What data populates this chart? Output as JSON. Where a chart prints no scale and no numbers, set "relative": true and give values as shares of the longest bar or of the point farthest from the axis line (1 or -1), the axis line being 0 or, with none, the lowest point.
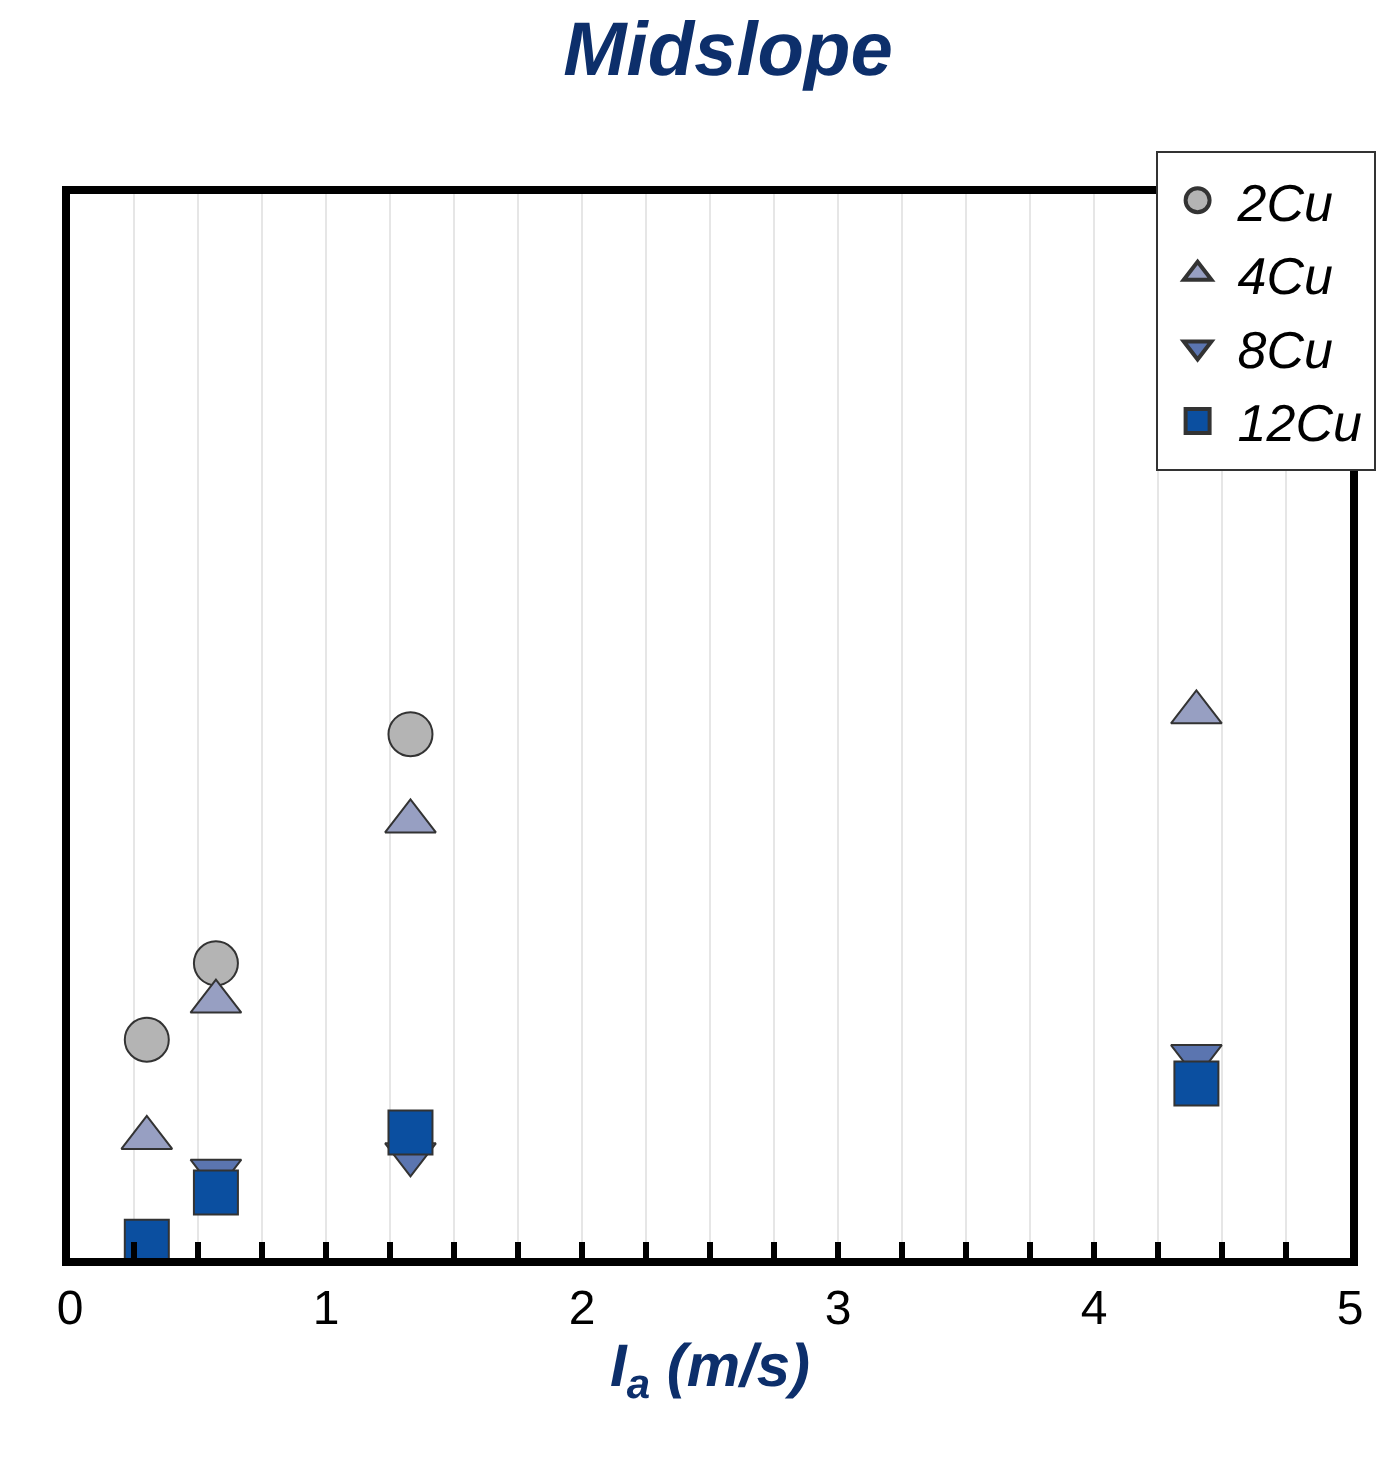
{
  "chart_data": {
    "type": "scatter",
    "title": "Midslope",
    "xlabel": "I$_{a}$ (m/s)",
    "relative": true,
    "tick_labels": "x",
    "xlim": [
      0,
      5
    ],
    "xticks": [
      0,
      {
        "value": 0.25,
        "label": null
      },
      {
        "value": 0.5,
        "label": null
      },
      {
        "value": 0.75,
        "label": null
      },
      1,
      {
        "value": 1.25,
        "label": null
      },
      {
        "value": 1.5,
        "label": null
      },
      {
        "value": 1.75,
        "label": null
      },
      2,
      {
        "value": 2.25,
        "label": null
      },
      {
        "value": 2.5,
        "label": null
      },
      {
        "value": 2.75,
        "label": null
      },
      3,
      {
        "value": 3.25,
        "label": null
      },
      {
        "value": 3.5,
        "label": null
      },
      {
        "value": 3.75,
        "label": null
      },
      4,
      {
        "value": 4.25,
        "label": null
      },
      {
        "value": 4.5,
        "label": null
      },
      {
        "value": 4.75,
        "label": null
      },
      5
    ],
    "grid": "x",
    "legend": "top right",
    "series": [
      {
        "name": "2Cu",
        "color": "#b4b4b4",
        "marker": "circle",
        "x": [
          0.3,
          0.57,
          1.33
        ],
        "values": [
          0.4,
          0.54,
          0.96
        ]
      },
      {
        "name": "4Cu",
        "color": "#979fc2",
        "marker": "triangle",
        "x": [
          0.3,
          0.57,
          1.33,
          4.4
        ],
        "values": [
          0.22,
          0.47,
          0.8,
          1.0
        ]
      },
      {
        "name": "8Cu",
        "color": "#5b75b0",
        "marker": "triangle-down",
        "x": [
          0.57,
          1.33,
          4.4
        ],
        "values": [
          0.16,
          0.19,
          0.37
        ]
      },
      {
        "name": "12Cu",
        "color": "#0b4fa0",
        "marker": "square",
        "x": [
          0.3,
          0.57,
          1.33,
          4.4
        ],
        "values": [
          0.03,
          0.12,
          0.23,
          0.32
        ]
      }
    ]
  }
}
